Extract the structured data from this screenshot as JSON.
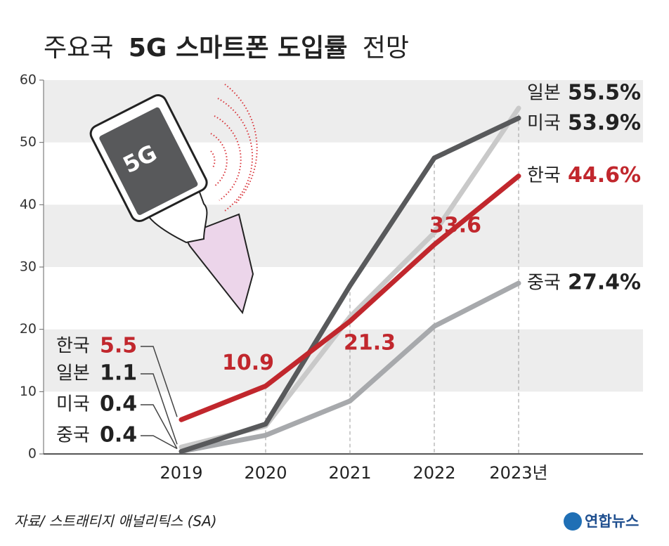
{
  "chart_data": {
    "type": "line",
    "title": [
      "주요국",
      "5G 스마트폰 도입률",
      "전망"
    ],
    "categories": [
      "2019",
      "2020",
      "2021",
      "2022",
      "2023년"
    ],
    "series": [
      {
        "name": "한국",
        "color": "#c1272d",
        "values": [
          5.5,
          10.9,
          21.3,
          33.6,
          44.6
        ],
        "value_labels": [
          "5.5",
          "10.9",
          "21.3",
          "33.6",
          "44.6%"
        ]
      },
      {
        "name": "일본",
        "color": "#c9c9c9",
        "values": [
          1.1,
          4.5,
          22,
          35.5,
          55.5
        ],
        "value_labels": [
          "1.1",
          null,
          null,
          null,
          "55.5%"
        ]
      },
      {
        "name": "미국",
        "color": "#58595b",
        "values": [
          0.4,
          4.8,
          27,
          47.5,
          53.9
        ],
        "value_labels": [
          "0.4",
          null,
          null,
          null,
          "53.9%"
        ]
      },
      {
        "name": "중국",
        "color": "#a7a9ac",
        "values": [
          0.4,
          3,
          8.5,
          20.5,
          27.4
        ],
        "value_labels": [
          "0.4",
          null,
          null,
          null,
          "27.4%"
        ]
      }
    ],
    "ylim": [
      0,
      60
    ],
    "yticks": [
      0,
      10,
      20,
      30,
      40,
      50,
      60
    ],
    "illustration_text": "5G",
    "source": "자료/ 스트래티지 애널리틱스 (SA)",
    "logo": "연합뉴스"
  }
}
